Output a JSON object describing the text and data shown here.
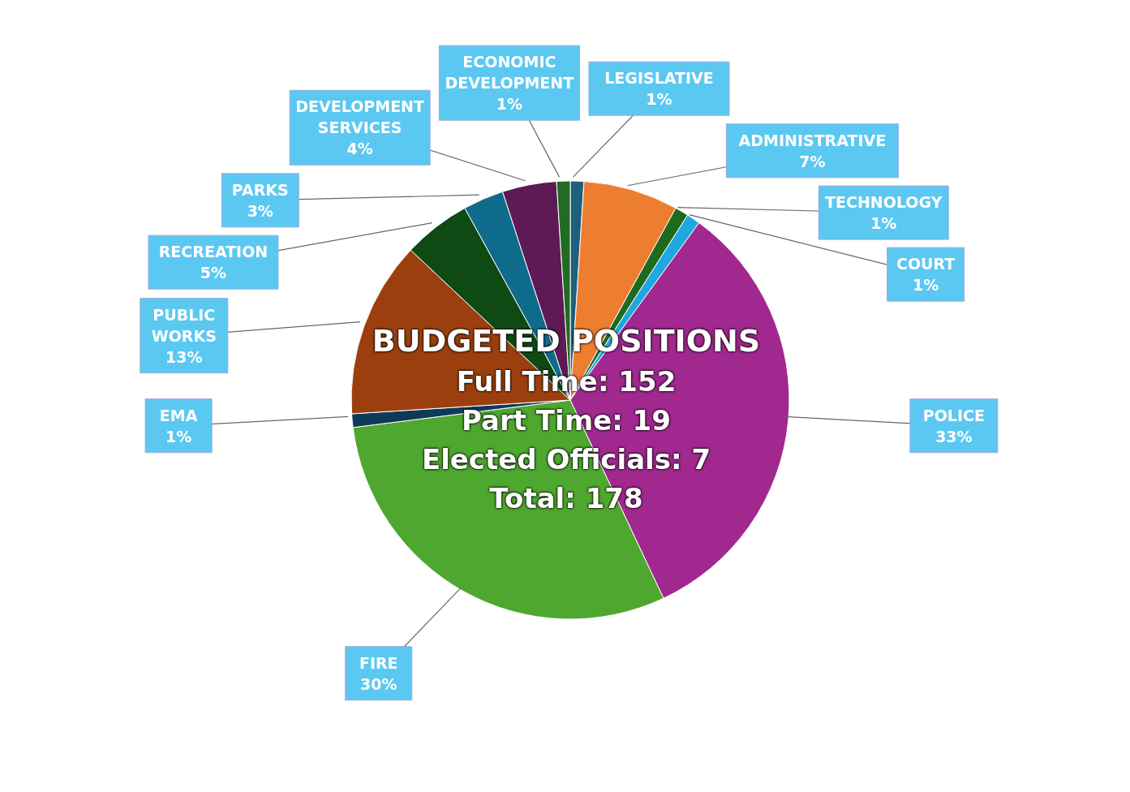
{
  "chart_data": {
    "type": "pie",
    "title": "BUDGETED POSITIONS",
    "categories": [
      "LEGISLATIVE",
      "ADMINISTRATIVE",
      "TECHNOLOGY",
      "COURT",
      "POLICE",
      "FIRE",
      "EMA",
      "PUBLIC WORKS",
      "RECREATION",
      "PARKS",
      "DEVELOPMENT SERVICES",
      "ECONOMIC DEVELOPMENT"
    ],
    "values": [
      1,
      7,
      1,
      1,
      33,
      30,
      1,
      13,
      5,
      3,
      4,
      1
    ],
    "value_labels": [
      "1%",
      "7%",
      "1%",
      "1%",
      "33%",
      "30%",
      "1%",
      "13%",
      "5%",
      "3%",
      "4%",
      "1%"
    ],
    "colors": [
      "#1f5f7a",
      "#ed7d31",
      "#1e6b1e",
      "#1fa8e0",
      "#a0288f",
      "#4ea72e",
      "#0e3a5a",
      "#9c3f0e",
      "#0f4a14",
      "#0e6b8c",
      "#5e1a55",
      "#216b24"
    ],
    "annotations": [
      "Full Time:  152",
      "Part Time:  19",
      "Elected Officials:  7",
      "Total:  178"
    ]
  }
}
